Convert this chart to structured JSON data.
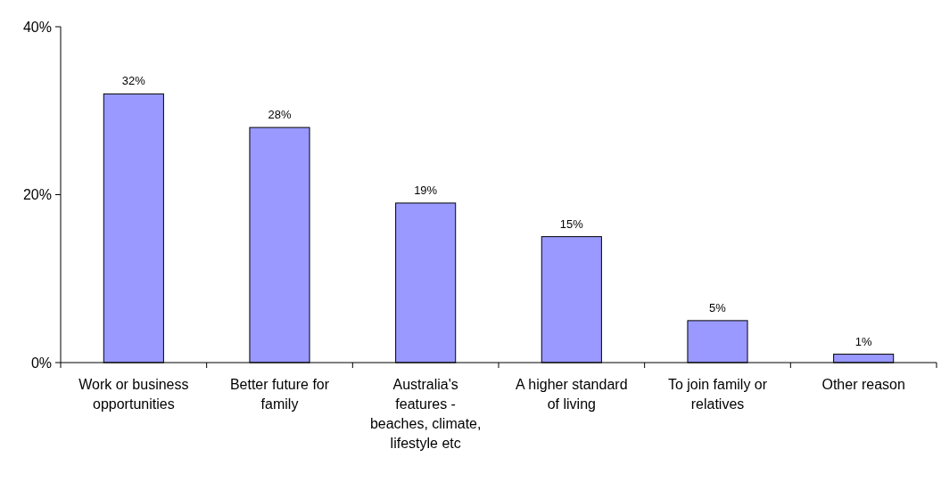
{
  "chart_data": {
    "type": "bar",
    "categories": [
      "Work or business opportunities",
      "Better future for family",
      "Australia's features - beaches, climate, lifestyle etc",
      "A higher standard of living",
      "To join family or relatives",
      "Other reason"
    ],
    "values": [
      32,
      28,
      19,
      15,
      5,
      1
    ],
    "value_labels": [
      "32%",
      "28%",
      "19%",
      "15%",
      "5%",
      "1%"
    ],
    "color": "#9999ff",
    "ylim": [
      0,
      40
    ],
    "yticks": [
      {
        "value": 0,
        "label": "0%"
      },
      {
        "value": 20,
        "label": "20%"
      },
      {
        "value": 40,
        "label": "40%"
      }
    ],
    "grid": false
  }
}
